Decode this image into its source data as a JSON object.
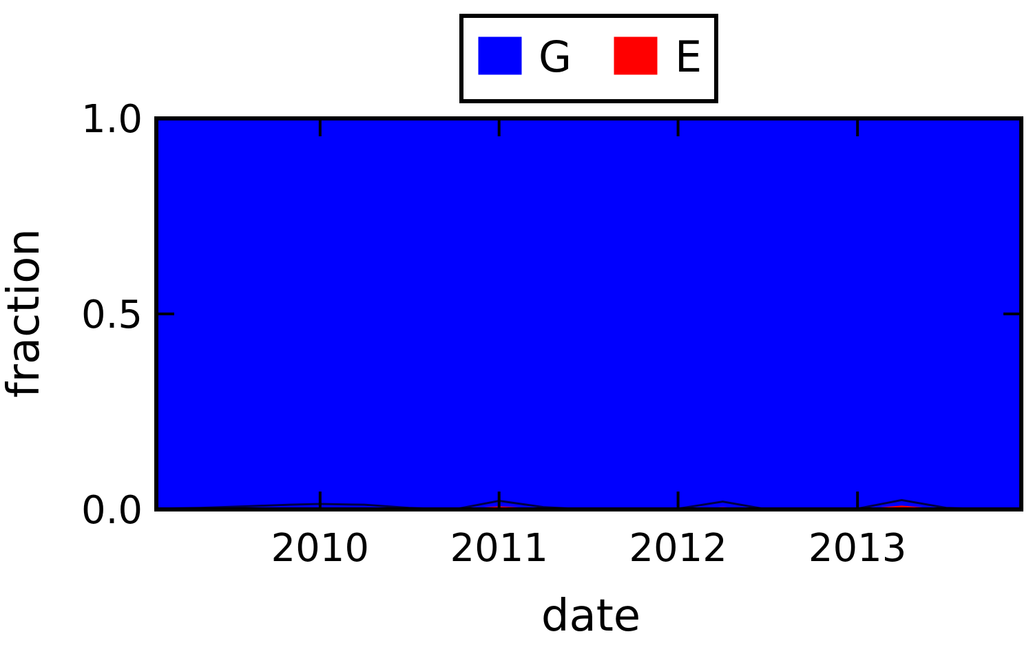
{
  "chart_data": {
    "type": "area",
    "stacked": true,
    "normalized": true,
    "xlabel": "date",
    "ylabel": "fraction",
    "xlim": [
      "2009-02-01",
      "2013-12-01"
    ],
    "ylim": [
      0,
      1
    ],
    "x_ticks": [
      "2010",
      "2011",
      "2012",
      "2013"
    ],
    "y_ticks": [
      "0.0",
      "0.5",
      "1.0"
    ],
    "legend_position": "top-center",
    "grid": false,
    "x": [
      "2009-02-01",
      "2009-05-01",
      "2009-08-01",
      "2009-11-01",
      "2010-01-01",
      "2010-04-01",
      "2010-07-01",
      "2010-10-01",
      "2011-01-01",
      "2011-04-01",
      "2011-07-01",
      "2011-10-01",
      "2012-01-01",
      "2012-04-01",
      "2012-07-01",
      "2012-10-01",
      "2013-01-01",
      "2013-04-01",
      "2013-07-01",
      "2013-10-01",
      "2013-12-01"
    ],
    "series": [
      {
        "name": "E",
        "color": "#ff0000",
        "values": [
          0,
          0,
          0,
          0,
          0,
          0,
          0,
          0,
          0.008,
          0.002,
          0,
          0,
          0,
          0.006,
          0,
          0,
          0,
          0.01,
          0,
          0,
          0
        ]
      },
      {
        "name": "G",
        "color": "#0000ff",
        "values": [
          1,
          1,
          1,
          1,
          1,
          1,
          1,
          1,
          0.992,
          0.998,
          1,
          1,
          1,
          0.994,
          1,
          1,
          1,
          0.99,
          1,
          1,
          1
        ]
      }
    ],
    "boundary": [
      0.002,
      0.004,
      0.008,
      0.012,
      0.014,
      0.012,
      0.004,
      0,
      0.022,
      0.006,
      0,
      0,
      0.002,
      0.02,
      0,
      0,
      0.002,
      0.024,
      0.004,
      0,
      0
    ]
  },
  "legend": {
    "items": [
      {
        "label": "G",
        "color": "#0000ff"
      },
      {
        "label": "E",
        "color": "#ff0000"
      }
    ]
  }
}
